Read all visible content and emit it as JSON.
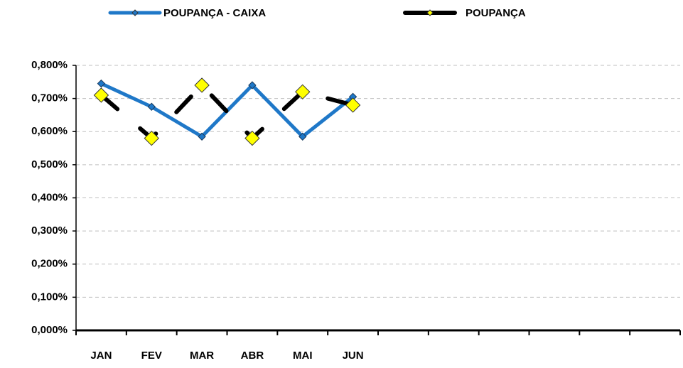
{
  "chart_data": {
    "type": "line",
    "categories": [
      "JAN",
      "FEV",
      "MAR",
      "ABR",
      "MAI",
      "JUN",
      null,
      null,
      null,
      null,
      null,
      null
    ],
    "series": [
      {
        "name": "POUPANÇA - CAIXA",
        "color": "#1f78c8",
        "marker_color": "#1f78c8",
        "values": [
          0.745,
          0.675,
          0.585,
          0.74,
          0.585,
          0.705,
          null,
          null,
          null,
          null,
          null,
          null
        ]
      },
      {
        "name": "POUPANÇA",
        "color": "#000000",
        "marker_color": "#ffff00",
        "values": [
          0.71,
          0.58,
          0.74,
          0.58,
          0.72,
          0.68,
          null,
          null,
          null,
          null,
          null,
          null
        ]
      }
    ],
    "ylim": [
      0,
      0.8
    ],
    "yticks": [
      {
        "value": 0,
        "label": "0,000%"
      },
      {
        "value": 0.1,
        "label": "0,100%"
      },
      {
        "value": 0.2,
        "label": "0,200%"
      },
      {
        "value": 0.3,
        "label": "0,300%"
      },
      {
        "value": 0.4,
        "label": "0,400%"
      },
      {
        "value": 0.5,
        "label": "0,500%"
      },
      {
        "value": 0.6,
        "label": "0,600%"
      },
      {
        "value": 0.7,
        "label": "0,700%"
      },
      {
        "value": 0.8,
        "label": "0,800%"
      }
    ],
    "grid": true,
    "legend": "top"
  }
}
